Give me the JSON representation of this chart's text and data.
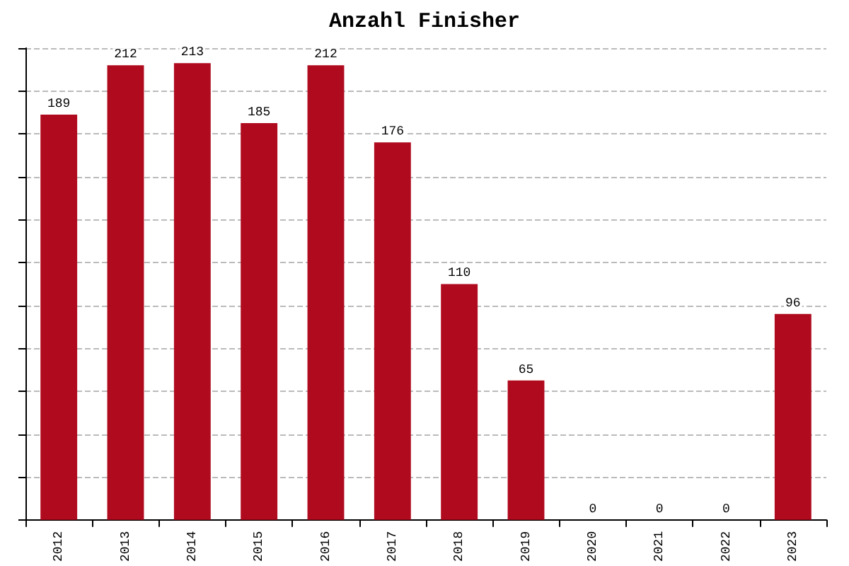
{
  "chart_data": {
    "type": "bar",
    "title": "Anzahl Finisher",
    "categories": [
      "2012",
      "2013",
      "2014",
      "2015",
      "2016",
      "2017",
      "2018",
      "2019",
      "2020",
      "2021",
      "2022",
      "2023"
    ],
    "values": [
      189,
      212,
      213,
      185,
      212,
      176,
      110,
      65,
      0,
      0,
      0,
      96
    ],
    "color": "#b00a1e",
    "ylim": [
      0,
      220
    ],
    "yticks": [
      {
        "value": 0,
        "label": null
      },
      {
        "value": 20,
        "label": null
      },
      {
        "value": 40,
        "label": null
      },
      {
        "value": 60,
        "label": null
      },
      {
        "value": 80,
        "label": null
      },
      {
        "value": 100,
        "label": null
      },
      {
        "value": 120,
        "label": null
      },
      {
        "value": 140,
        "label": null
      },
      {
        "value": 160,
        "label": null
      },
      {
        "value": 180,
        "label": null
      },
      {
        "value": 200,
        "label": null
      },
      {
        "value": 220,
        "label": null
      }
    ],
    "tick_labels": "x",
    "grid": "y",
    "data_labels": true
  }
}
